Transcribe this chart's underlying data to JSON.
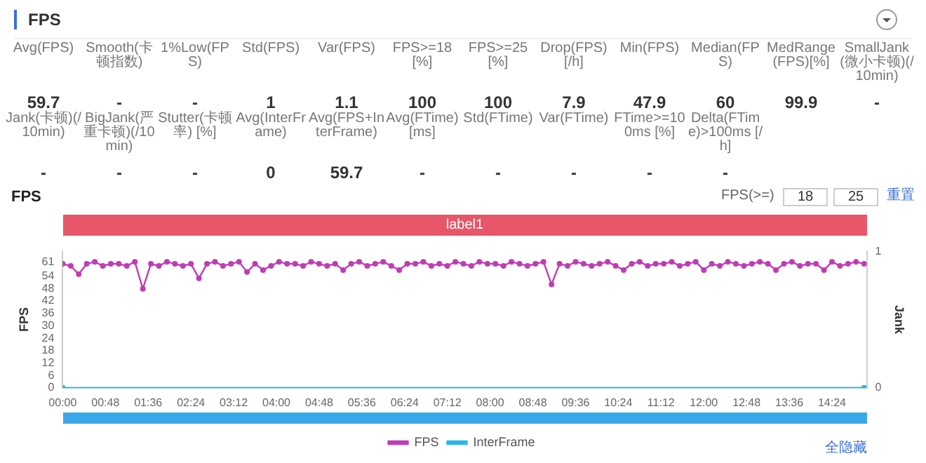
{
  "chart_data": [
    {
      "type": "other",
      "title": "FPS",
      "categories": [
        "Avg(FPS)",
        "Smooth(卡顿指数)",
        "1%Low(FPS)",
        "Std(FPS)",
        "Var(FPS)",
        "FPS>=18 [%]",
        "FPS>=25 [%]",
        "Drop(FPS) [/h]",
        "Min(FPS)",
        "Median(FPS)",
        "MedRange(FPS)[%]",
        "SmallJank(微小卡顿)(/10min)",
        "Jank(卡顿)(/10min)",
        "BigJank(严重卡顿)(/10min)",
        "Stutter(卡顿率) [%]",
        "Avg(InterFrame)",
        "Avg(FPS+InterFrame)",
        "Avg(FTime) [ms]",
        "Std(FTime)",
        "Var(FTime)",
        "FTime>=100ms [%]",
        "Delta(FTime)>100ms [/h]"
      ],
      "value_labels": [
        "59.7",
        "-",
        "-",
        "1",
        "1.1",
        "100",
        "100",
        "7.9",
        "47.9",
        "60",
        "99.9",
        "-",
        "-",
        "-",
        "-",
        "0",
        "59.7",
        "-",
        "-",
        "-",
        "-",
        "-"
      ]
    },
    {
      "type": "line",
      "title": "FPS",
      "ylabel": "FPS",
      "y2label": "Jank",
      "annotations": [
        "FPS(>=)",
        "18",
        "25",
        "重置",
        "全隐藏",
        "label1"
      ],
      "xlim": [
        0,
        903
      ],
      "xticks": [
        {
          "value": 0,
          "label": "00:00"
        },
        {
          "value": 48,
          "label": "00:48"
        },
        {
          "value": 96,
          "label": "01:36"
        },
        {
          "value": 144,
          "label": "02:24"
        },
        {
          "value": 192,
          "label": "03:12"
        },
        {
          "value": 240,
          "label": "04:00"
        },
        {
          "value": 288,
          "label": "04:48"
        },
        {
          "value": 336,
          "label": "05:36"
        },
        {
          "value": 384,
          "label": "06:24"
        },
        {
          "value": 432,
          "label": "07:12"
        },
        {
          "value": 480,
          "label": "08:00"
        },
        {
          "value": 528,
          "label": "08:48"
        },
        {
          "value": 576,
          "label": "09:36"
        },
        {
          "value": 624,
          "label": "10:24"
        },
        {
          "value": 672,
          "label": "11:12"
        },
        {
          "value": 720,
          "label": "12:00"
        },
        {
          "value": 768,
          "label": "12:48"
        },
        {
          "value": 816,
          "label": "13:36"
        },
        {
          "value": 864,
          "label": "14:24"
        }
      ],
      "ylim": [
        0,
        66
      ],
      "yticks": [
        0,
        6,
        12,
        18,
        24,
        30,
        36,
        42,
        48,
        54,
        61
      ],
      "y2lim": [
        0,
        1
      ],
      "y2ticks": [
        0,
        1
      ],
      "legend": "bottom",
      "marker": "circle",
      "line_style": "solid",
      "series": [
        {
          "name": "FPS",
          "color": "#c03cb5",
          "x": [
            0,
            9,
            18,
            27,
            36,
            45,
            54,
            63,
            72,
            81,
            90,
            99,
            108,
            117,
            126,
            135,
            144,
            153,
            162,
            171,
            180,
            189,
            198,
            207,
            216,
            225,
            234,
            243,
            252,
            261,
            270,
            279,
            288,
            297,
            306,
            315,
            324,
            333,
            342,
            351,
            360,
            369,
            378,
            387,
            396,
            405,
            414,
            423,
            432,
            441,
            450,
            459,
            468,
            477,
            486,
            495,
            504,
            513,
            522,
            531,
            540,
            549,
            558,
            567,
            576,
            585,
            594,
            603,
            612,
            621,
            630,
            639,
            648,
            657,
            666,
            675,
            684,
            693,
            702,
            711,
            720,
            729,
            738,
            747,
            756,
            765,
            774,
            783,
            792,
            801,
            810,
            819,
            828,
            837,
            846,
            855,
            864,
            873,
            882,
            891,
            900
          ],
          "values": [
            60,
            59,
            55,
            60,
            61,
            59,
            60,
            60,
            59,
            61,
            47.9,
            60,
            59,
            61,
            60,
            59,
            60,
            53,
            60,
            61,
            59,
            60,
            61,
            56,
            60,
            57,
            59,
            61,
            60,
            60,
            59,
            61,
            60,
            59,
            60,
            57,
            60,
            61,
            59,
            60,
            61,
            59,
            57,
            60,
            60,
            61,
            59,
            60,
            59,
            61,
            60,
            59,
            61,
            60,
            60,
            59,
            61,
            60,
            59,
            60,
            61,
            50,
            60,
            59,
            61,
            60,
            59,
            60,
            61,
            59,
            57,
            60,
            61,
            59,
            60,
            60,
            61,
            59,
            60,
            61,
            57,
            60,
            59,
            61,
            60,
            59,
            60,
            61,
            60,
            57,
            60,
            61,
            59,
            60,
            60,
            57,
            61,
            59,
            60,
            61,
            60
          ]
        },
        {
          "name": "InterFrame",
          "color": "#29b6e8",
          "axis": "y2",
          "x": [
            0,
            900
          ],
          "values": [
            0,
            0
          ]
        }
      ]
    }
  ]
}
